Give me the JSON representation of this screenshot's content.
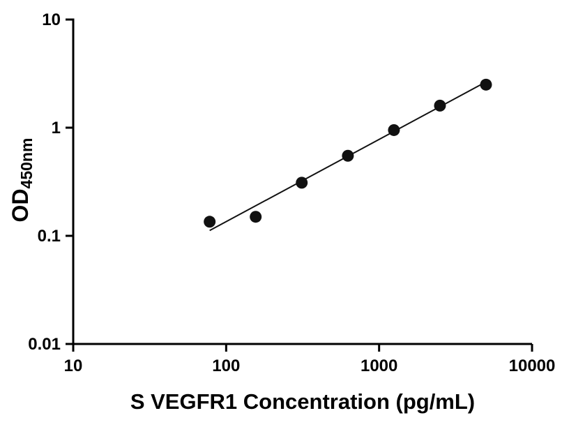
{
  "chart_data": {
    "type": "scatter",
    "title": "",
    "xlabel": "S VEGFR1 Concentration (pg/mL)",
    "ylabel_main": "OD",
    "ylabel_sub": "450nm",
    "x_scale": "log",
    "y_scale": "log",
    "xlim": [
      10,
      10000
    ],
    "ylim": [
      0.01,
      10
    ],
    "x_ticks": [
      10,
      100,
      1000,
      10000
    ],
    "x_tick_labels": [
      "10",
      "100",
      "1000",
      "10000"
    ],
    "y_ticks": [
      0.01,
      0.1,
      1,
      10
    ],
    "y_tick_labels": [
      "0.01",
      "0.1",
      "1",
      "10"
    ],
    "grid": false,
    "legend_position": "none",
    "series": [
      {
        "name": "standard-curve-points",
        "kind": "scatter",
        "marker": "circle",
        "color": "#111111",
        "x": [
          78,
          156,
          312,
          625,
          1250,
          2500,
          5000
        ],
        "y": [
          0.135,
          0.15,
          0.31,
          0.55,
          0.95,
          1.6,
          2.5
        ]
      },
      {
        "name": "trend-line",
        "kind": "line",
        "color": "#111111",
        "x": [
          78,
          5000
        ],
        "y": [
          0.112,
          2.65
        ]
      }
    ]
  },
  "colors": {
    "background": "#ffffff",
    "axis": "#000000",
    "marker": "#111111"
  }
}
